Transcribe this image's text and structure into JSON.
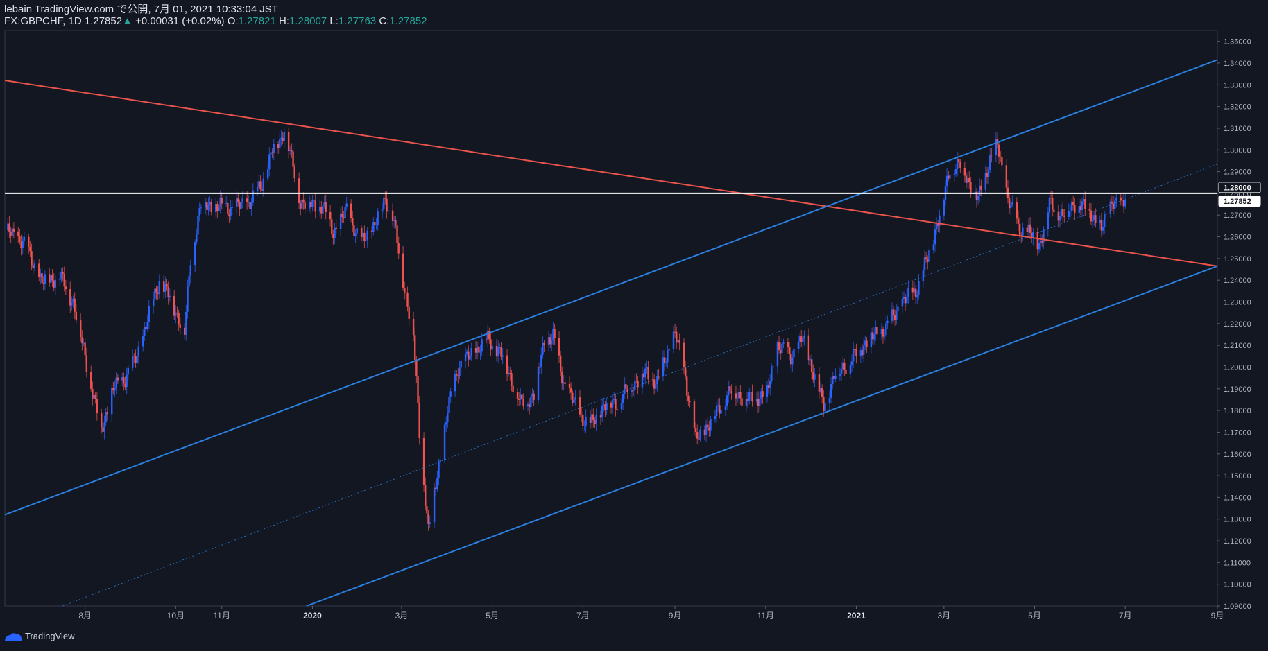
{
  "header": {
    "line1": "lebain TradingView.com で公開, 7月 01, 2021 10:33:04 JST",
    "symbol": "FX:GBPCHF, 1D",
    "last": "1.27852",
    "change_arrow": "▲",
    "change": "+0.00031 (+0.02%)",
    "o_label": "O:",
    "o_val": "1.27821",
    "h_label": "H:",
    "h_val": "1.28007",
    "l_label": "L:",
    "l_val": "1.27763",
    "c_label": "C:",
    "c_val": "1.27852"
  },
  "footer": {
    "brand": "TradingView"
  },
  "colors": {
    "background": "#131722",
    "up": "#2962ff",
    "down": "#f0524f",
    "channel": "#2a7fde",
    "resistance": "#e8534c",
    "level": "#ffffff",
    "accent": "#26a69a"
  },
  "chart_data": {
    "type": "line",
    "instrument": "FX:GBPCHF",
    "timeframe": "1D",
    "x_range": [
      "2019-06-08",
      "2021-09-01"
    ],
    "ylim": [
      1.09,
      1.355
    ],
    "y_ticks": [
      "1.09000",
      "1.10000",
      "1.11000",
      "1.12000",
      "1.13000",
      "1.14000",
      "1.15000",
      "1.16000",
      "1.17000",
      "1.18000",
      "1.19000",
      "1.20000",
      "1.21000",
      "1.22000",
      "1.23000",
      "1.24000",
      "1.25000",
      "1.26000",
      "1.27000",
      "1.28000",
      "1.29000",
      "1.30000",
      "1.31000",
      "1.32000",
      "1.33000",
      "1.34000",
      "1.35000"
    ],
    "x_ticks": [
      {
        "date": "2019-08-01",
        "label": "8月"
      },
      {
        "date": "2019-10-01",
        "label": "10月"
      },
      {
        "date": "2019-11-01",
        "label": "11月"
      },
      {
        "date": "2020-01-01",
        "label": "2020"
      },
      {
        "date": "2020-03-01",
        "label": "3月"
      },
      {
        "date": "2020-05-01",
        "label": "5月"
      },
      {
        "date": "2020-07-01",
        "label": "7月"
      },
      {
        "date": "2020-09-01",
        "label": "9月"
      },
      {
        "date": "2020-11-01",
        "label": "11月"
      },
      {
        "date": "2021-01-01",
        "label": "2021"
      },
      {
        "date": "2021-03-01",
        "label": "3月"
      },
      {
        "date": "2021-05-01",
        "label": "5月"
      },
      {
        "date": "2021-07-01",
        "label": "7月"
      },
      {
        "date": "2021-09-01",
        "label": "9月"
      }
    ],
    "price_path": [
      [
        "2019-06-08",
        1.263
      ],
      [
        "2019-06-20",
        1.258
      ],
      [
        "2019-07-03",
        1.239
      ],
      [
        "2019-07-15",
        1.242
      ],
      [
        "2019-07-24",
        1.23
      ],
      [
        "2019-08-01",
        1.205
      ],
      [
        "2019-08-08",
        1.182
      ],
      [
        "2019-08-12",
        1.171
      ],
      [
        "2019-08-20",
        1.19
      ],
      [
        "2019-08-28",
        1.195
      ],
      [
        "2019-09-05",
        1.205
      ],
      [
        "2019-09-12",
        1.222
      ],
      [
        "2019-09-20",
        1.24
      ],
      [
        "2019-09-27",
        1.232
      ],
      [
        "2019-10-07",
        1.216
      ],
      [
        "2019-10-11",
        1.25
      ],
      [
        "2019-10-18",
        1.275
      ],
      [
        "2019-10-28",
        1.274
      ],
      [
        "2019-11-08",
        1.273
      ],
      [
        "2019-11-20",
        1.276
      ],
      [
        "2019-11-28",
        1.284
      ],
      [
        "2019-12-05",
        1.3
      ],
      [
        "2019-12-11",
        1.305
      ],
      [
        "2019-12-13",
        1.311
      ],
      [
        "2019-12-18",
        1.295
      ],
      [
        "2019-12-24",
        1.276
      ],
      [
        "2020-01-08",
        1.274
      ],
      [
        "2020-01-15",
        1.262
      ],
      [
        "2020-01-24",
        1.272
      ],
      [
        "2020-02-03",
        1.257
      ],
      [
        "2020-02-12",
        1.266
      ],
      [
        "2020-02-19",
        1.277
      ],
      [
        "2020-02-24",
        1.27
      ],
      [
        "2020-03-02",
        1.24
      ],
      [
        "2020-03-09",
        1.215
      ],
      [
        "2020-03-13",
        1.17
      ],
      [
        "2020-03-19",
        1.125
      ],
      [
        "2020-03-25",
        1.15
      ],
      [
        "2020-04-01",
        1.18
      ],
      [
        "2020-04-08",
        1.2
      ],
      [
        "2020-04-16",
        1.205
      ],
      [
        "2020-04-28",
        1.213
      ],
      [
        "2020-05-08",
        1.205
      ],
      [
        "2020-05-20",
        1.183
      ],
      [
        "2020-05-29",
        1.187
      ],
      [
        "2020-06-05",
        1.212
      ],
      [
        "2020-06-11",
        1.214
      ],
      [
        "2020-06-18",
        1.193
      ],
      [
        "2020-06-29",
        1.178
      ],
      [
        "2020-07-06",
        1.173
      ],
      [
        "2020-07-15",
        1.182
      ],
      [
        "2020-07-24",
        1.184
      ],
      [
        "2020-08-03",
        1.192
      ],
      [
        "2020-08-12",
        1.197
      ],
      [
        "2020-08-20",
        1.193
      ],
      [
        "2020-09-01",
        1.216
      ],
      [
        "2020-09-08",
        1.195
      ],
      [
        "2020-09-15",
        1.166
      ],
      [
        "2020-09-25",
        1.175
      ],
      [
        "2020-10-08",
        1.189
      ],
      [
        "2020-10-21",
        1.185
      ],
      [
        "2020-11-02",
        1.188
      ],
      [
        "2020-11-09",
        1.21
      ],
      [
        "2020-11-18",
        1.205
      ],
      [
        "2020-11-26",
        1.213
      ],
      [
        "2020-12-03",
        1.198
      ],
      [
        "2020-12-10",
        1.182
      ],
      [
        "2020-12-17",
        1.196
      ],
      [
        "2020-12-28",
        1.203
      ],
      [
        "2021-01-08",
        1.212
      ],
      [
        "2021-01-21",
        1.218
      ],
      [
        "2021-02-01",
        1.23
      ],
      [
        "2021-02-10",
        1.235
      ],
      [
        "2021-02-18",
        1.25
      ],
      [
        "2021-02-25",
        1.268
      ],
      [
        "2021-03-01",
        1.278
      ],
      [
        "2021-03-05",
        1.292
      ],
      [
        "2021-03-12",
        1.293
      ],
      [
        "2021-03-24",
        1.277
      ],
      [
        "2021-04-01",
        1.296
      ],
      [
        "2021-04-06",
        1.302
      ],
      [
        "2021-04-13",
        1.278
      ],
      [
        "2021-04-20",
        1.264
      ],
      [
        "2021-04-27",
        1.262
      ],
      [
        "2021-05-04",
        1.256
      ],
      [
        "2021-05-11",
        1.275
      ],
      [
        "2021-05-20",
        1.27
      ],
      [
        "2021-05-29",
        1.276
      ],
      [
        "2021-06-08",
        1.271
      ],
      [
        "2021-06-15",
        1.263
      ],
      [
        "2021-06-22",
        1.277
      ],
      [
        "2021-06-28",
        1.273
      ],
      [
        "2021-07-01",
        1.2785
      ]
    ],
    "lines": [
      {
        "role": "resistance",
        "from": [
          "2019-06-08",
          1.332
        ],
        "to": [
          "2021-09-01",
          1.2465
        ]
      },
      {
        "role": "channel-upper",
        "from": [
          "2019-06-08",
          1.132
        ],
        "to": [
          "2021-09-01",
          1.3415
        ]
      },
      {
        "role": "channel-lower",
        "from": [
          "2019-12-28",
          1.09
        ],
        "to": [
          "2021-09-01",
          1.2465
        ]
      },
      {
        "role": "channel-mid",
        "style": "dotted",
        "from": [
          "2019-07-17",
          1.09
        ],
        "to": [
          "2021-09-01",
          1.2935
        ]
      },
      {
        "role": "horizontal-level",
        "price": 1.28
      }
    ],
    "price_labels": [
      {
        "price": 1.28,
        "text": "1.28000"
      },
      {
        "price": 1.27852,
        "text": "1.27852"
      }
    ]
  }
}
